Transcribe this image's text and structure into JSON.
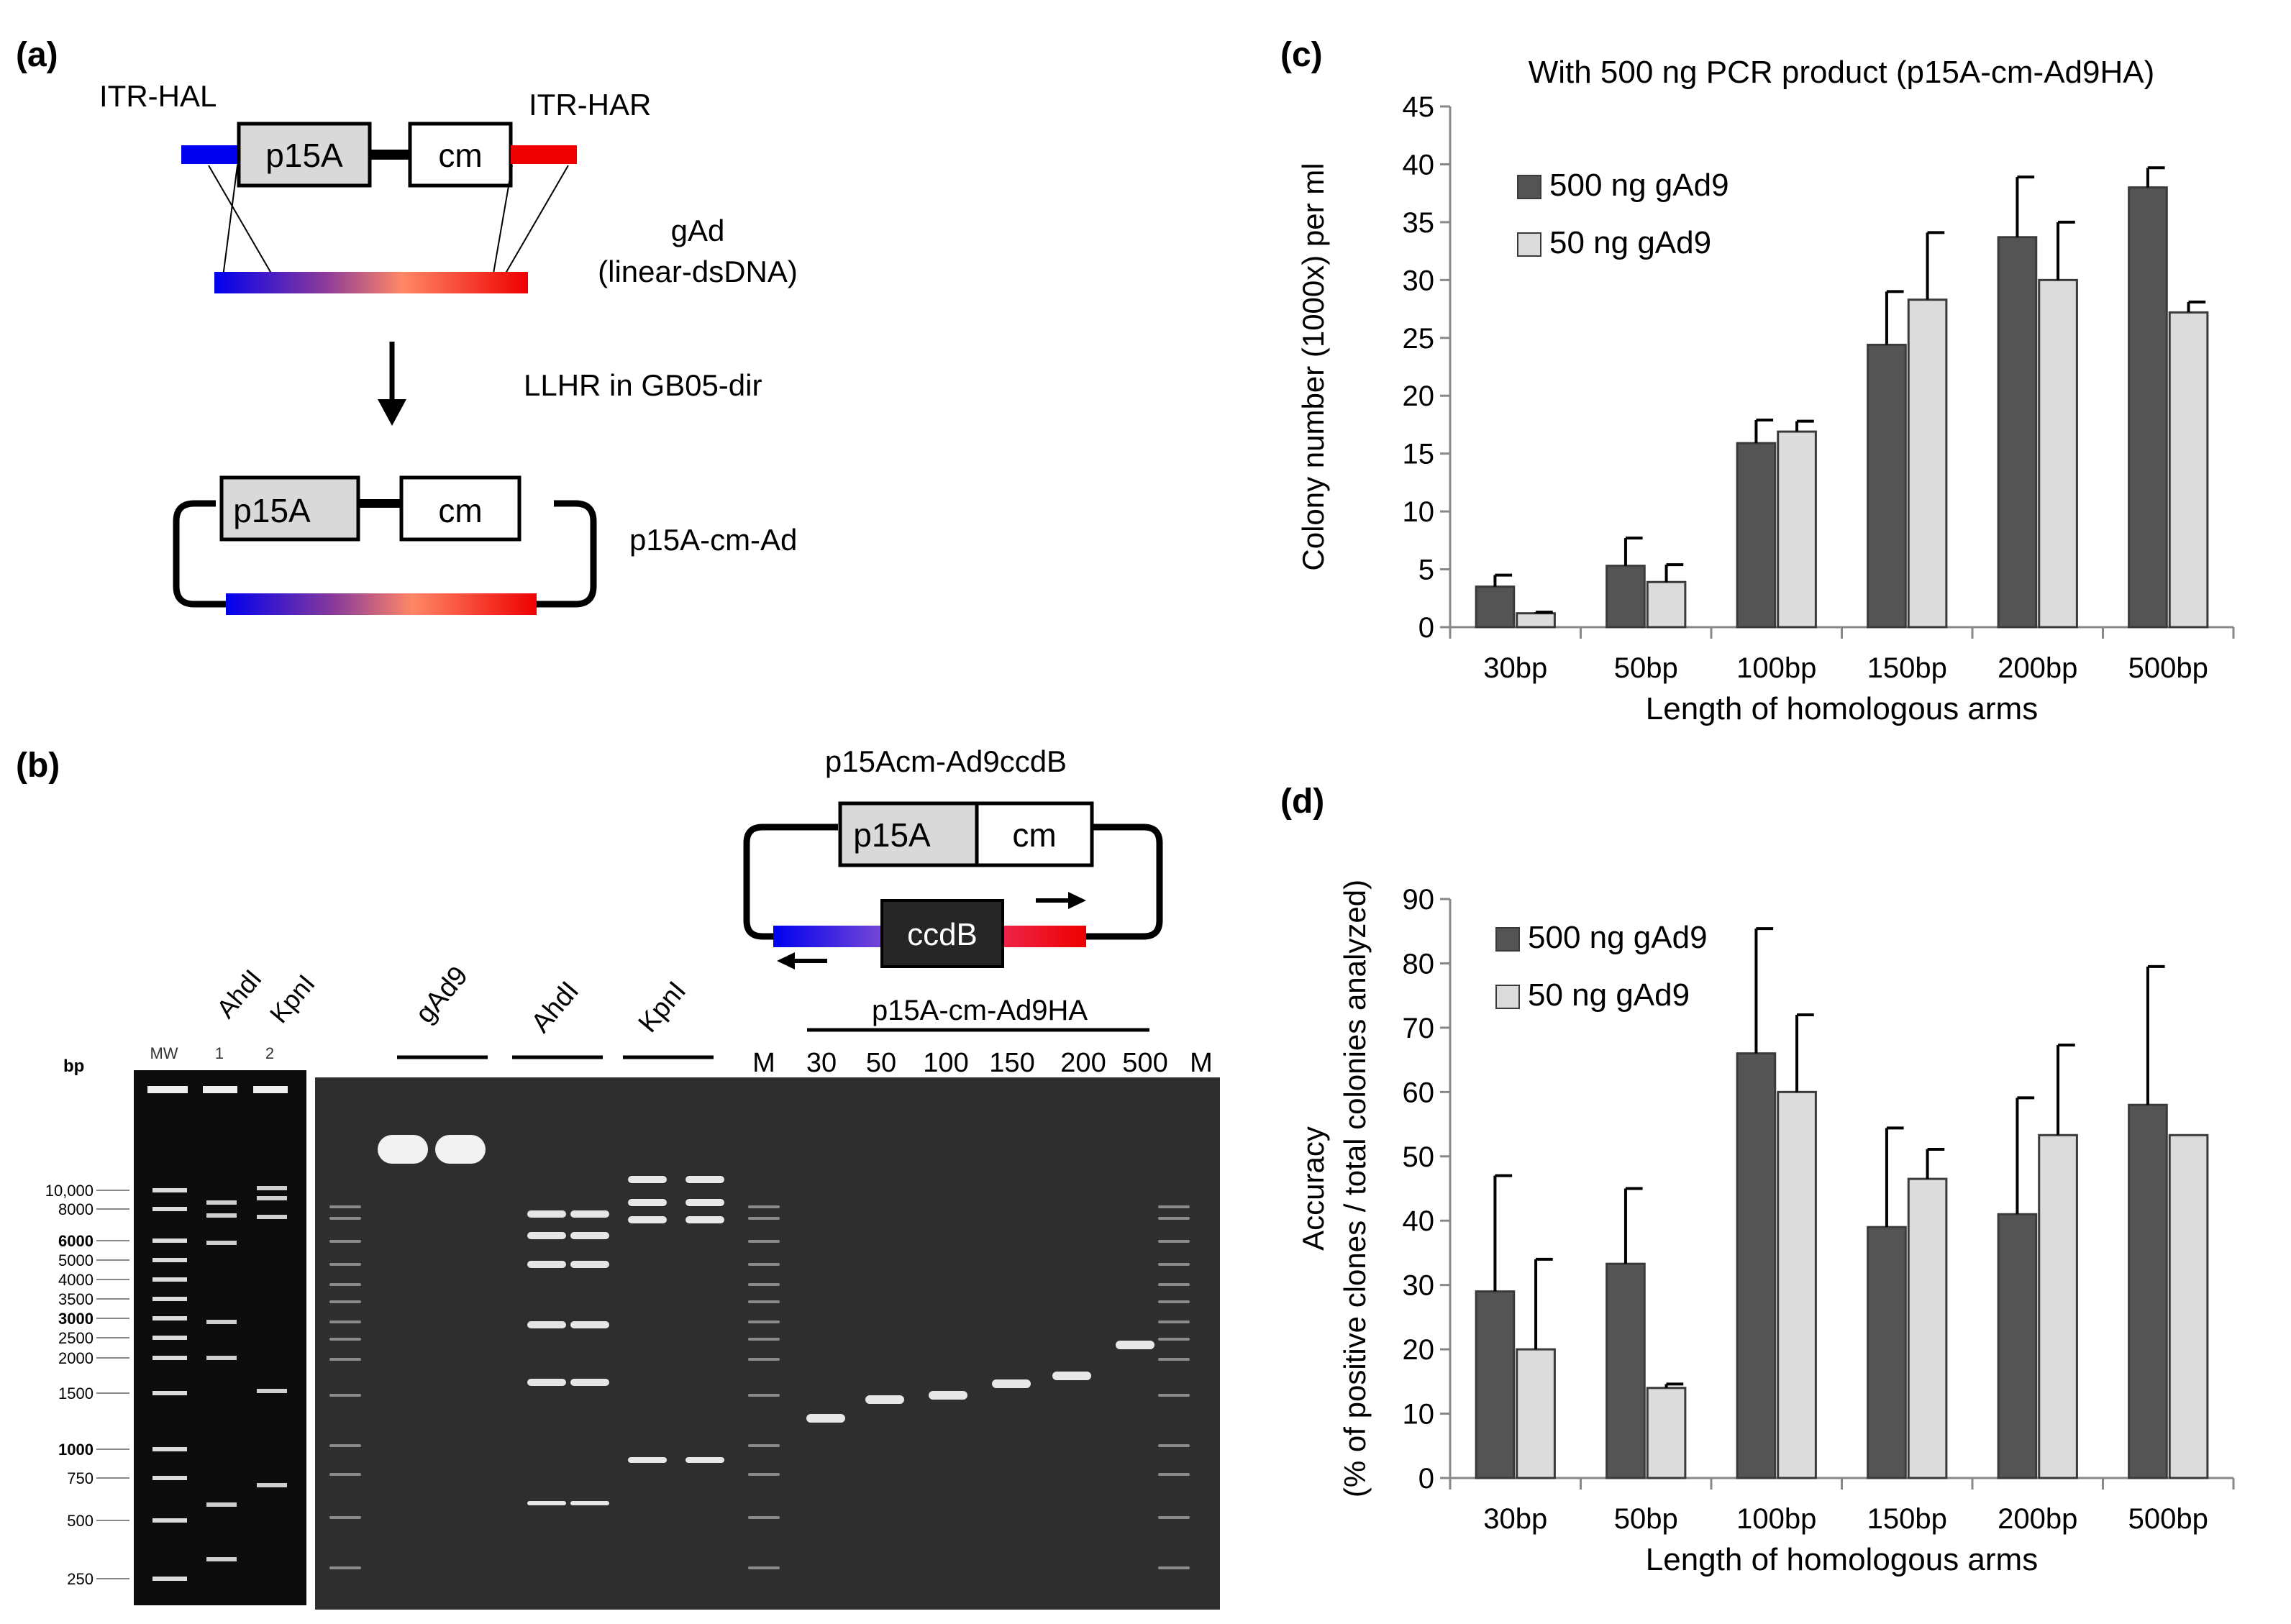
{
  "panel_labels": {
    "a": "(a)",
    "b": "(b)",
    "c": "(c)",
    "d": "(d)"
  },
  "panel_a": {
    "itr_hal": "ITR-HAL",
    "itr_har": "ITR-HAR",
    "p15a": "p15A",
    "cm": "cm",
    "gad": "gAd",
    "gad_sub": "(linear-dsDNA)",
    "llhr": "LLHR in GB05-dir",
    "product": "p15A-cm-Ad"
  },
  "panel_b": {
    "plasmid_title": "p15Acm-Ad9ccdB",
    "p15a": "p15A",
    "cm": "cm",
    "ccdb": "ccdB",
    "bp_label": "bp",
    "mw_gel_lanes": [
      "MW",
      "1",
      "2"
    ],
    "mw_enzymes": [
      "AhdI",
      "KpnI"
    ],
    "size_markers": [
      "10,000",
      "8000",
      "6000",
      "5000",
      "4000",
      "3500",
      "3000",
      "2500",
      "2000",
      "1500",
      "1000",
      "750",
      "500",
      "250"
    ],
    "lane_groups": [
      "gAd9",
      "AhdI",
      "KpnI"
    ],
    "group_ha": "p15A-cm-Ad9HA",
    "marker_lane": "M",
    "arm_lanes": [
      "30",
      "50",
      "100",
      "150",
      "200",
      "500"
    ]
  },
  "colors": {
    "dark_bar": "#545454",
    "light_bar": "#dcdcdc",
    "blue": "#0000ee",
    "red": "#ee0000",
    "gel_bg": "#2e2e2e"
  },
  "chart_data": [
    {
      "type": "bar",
      "panel": "c",
      "title": "With 500 ng PCR product (p15A-cm-Ad9HA)",
      "xlabel": "Length of homologous arms",
      "ylabel": "Colony number (1000x) per ml",
      "categories": [
        "30bp",
        "50bp",
        "100bp",
        "150bp",
        "200bp",
        "500bp"
      ],
      "ylim": [
        0,
        45
      ],
      "yticks": [
        "0",
        "5",
        "10",
        "15",
        "20",
        "25",
        "30",
        "35",
        "40",
        "45"
      ],
      "series": [
        {
          "name": "500 ng gAd9",
          "values": [
            3.5,
            5.3,
            15.9,
            24.4,
            33.7,
            38.0
          ],
          "errors": [
            1.0,
            2.4,
            2.0,
            4.6,
            5.2,
            1.7
          ]
        },
        {
          "name": "50 ng gAd9",
          "values": [
            1.2,
            3.9,
            16.9,
            28.3,
            30.0,
            27.2
          ],
          "errors": [
            0.1,
            1.5,
            0.9,
            5.8,
            5.0,
            0.9
          ]
        }
      ],
      "legend": "top-left",
      "grid": false
    },
    {
      "type": "bar",
      "panel": "d",
      "title": "",
      "xlabel": "Length of homologous arms",
      "ylabel": "Accuracy",
      "ylabel2": "(% of positive clones / total colonies analyzed)",
      "categories": [
        "30bp",
        "50bp",
        "100bp",
        "150bp",
        "200bp",
        "500bp"
      ],
      "ylim": [
        0,
        90
      ],
      "yticks": [
        "0",
        "10",
        "20",
        "30",
        "40",
        "50",
        "60",
        "70",
        "80",
        "90"
      ],
      "series": [
        {
          "name": "500 ng gAd9",
          "values": [
            29.0,
            33.3,
            66.0,
            39.0,
            41.0,
            58.0
          ],
          "errors": [
            18.0,
            11.7,
            19.4,
            15.4,
            18.1,
            21.5
          ]
        },
        {
          "name": "50 ng gAd9",
          "values": [
            20.0,
            14.0,
            60.0,
            46.5,
            53.3,
            53.3
          ],
          "errors": [
            14.0,
            0.6,
            12.0,
            4.6,
            14.0,
            0.0
          ]
        }
      ],
      "legend": "top-left",
      "grid": false
    }
  ]
}
